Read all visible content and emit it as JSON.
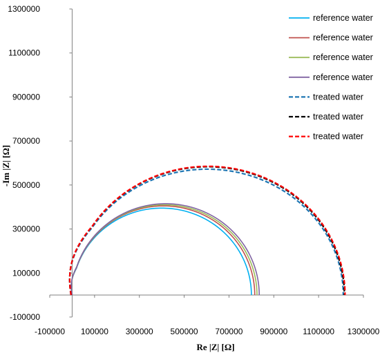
{
  "chart_data": {
    "type": "scatter",
    "title": "",
    "xlabel": "Re |Z| [Ω]",
    "ylabel": "-Im |Z| [Ω]",
    "xlim": [
      -100000,
      1300000
    ],
    "ylim": [
      -100000,
      1300000
    ],
    "xticks": [
      "-100000",
      "100000",
      "300000",
      "500000",
      "700000",
      "900000",
      "1100000",
      "1300000"
    ],
    "yticks": [
      "-100000",
      "100000",
      "300000",
      "500000",
      "700000",
      "900000",
      "1100000",
      "1300000"
    ],
    "grid": false,
    "legend_position": "top-right",
    "series": [
      {
        "name": "reference water",
        "color": "#00B0F0",
        "dash": "solid",
        "r_start": 0,
        "r_end": 800000,
        "peak": 395000,
        "tail": 0.1
      },
      {
        "name": "reference water",
        "color": "#C0504D",
        "dash": "solid",
        "r_start": 0,
        "r_end": 815000,
        "peak": 405000,
        "tail": 0.1
      },
      {
        "name": "reference water",
        "color": "#9BBB59",
        "dash": "solid",
        "r_start": 0,
        "r_end": 825000,
        "peak": 410000,
        "tail": 0.1
      },
      {
        "name": "reference water",
        "color": "#8064A2",
        "dash": "solid",
        "r_start": 0,
        "r_end": 835000,
        "peak": 415000,
        "tail": 0.1
      },
      {
        "name": "treated water",
        "color": "#1F77B4",
        "dash": "dashed",
        "r_start": -5000,
        "r_end": 1210000,
        "peak": 572000,
        "tail": 0.18
      },
      {
        "name": "treated water",
        "color": "#000000",
        "dash": "dashed",
        "r_start": -5000,
        "r_end": 1215000,
        "peak": 583000,
        "tail": 0.18
      },
      {
        "name": "treated water",
        "color": "#FF0000",
        "dash": "dashed",
        "r_start": -5000,
        "r_end": 1218000,
        "peak": 585000,
        "tail": 0.18
      }
    ]
  }
}
